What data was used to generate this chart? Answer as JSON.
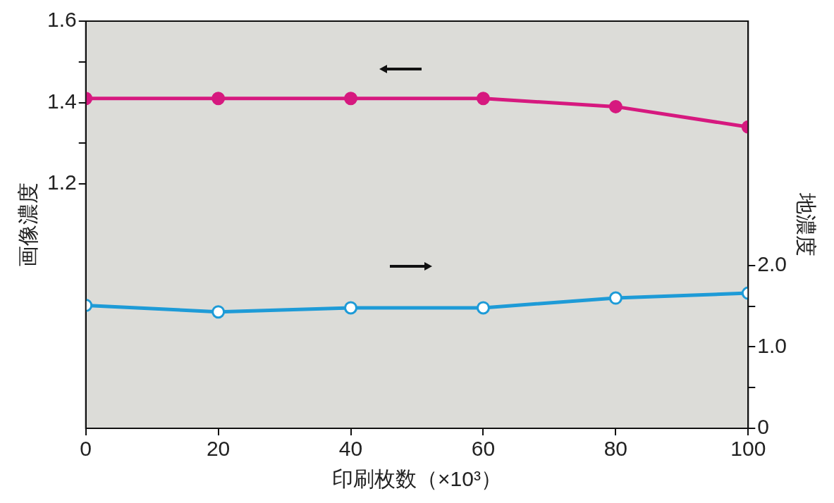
{
  "chart_data": {
    "type": "line",
    "xlabel": "印刷枚数（×10³）",
    "ylabel": "画像濃度",
    "y2label": "地濃度",
    "x": [
      0,
      20,
      40,
      60,
      80,
      100
    ],
    "series": [
      {
        "color": "#d6197f",
        "values": [
          1.41,
          1.41,
          1.41,
          1.41,
          1.39,
          1.34
        ]
      },
      {
        "color": "#1e9bd7",
        "axis": "y2",
        "values": [
          1.51,
          1.43,
          1.48,
          1.48,
          1.6,
          1.66
        ]
      }
    ],
    "xlim": [
      0,
      100
    ],
    "xticks": [
      0,
      20,
      40,
      60,
      80,
      100
    ],
    "ylim": [
      0.6,
      1.6
    ],
    "yticks": [
      1.2,
      {
        "value": 1.3,
        "label": null
      },
      1.4,
      {
        "value": 1.5,
        "label": null
      },
      1.6
    ],
    "y2lim": [
      0,
      5
    ],
    "y2ticks": [
      0,
      {
        "value": 0.5,
        "label": null
      },
      {
        "value": 1,
        "label": "1.0"
      },
      {
        "value": 1.5,
        "label": null
      },
      {
        "value": 2,
        "label": "2.0"
      }
    ],
    "marker": "circle",
    "grid": false,
    "legend": false
  }
}
